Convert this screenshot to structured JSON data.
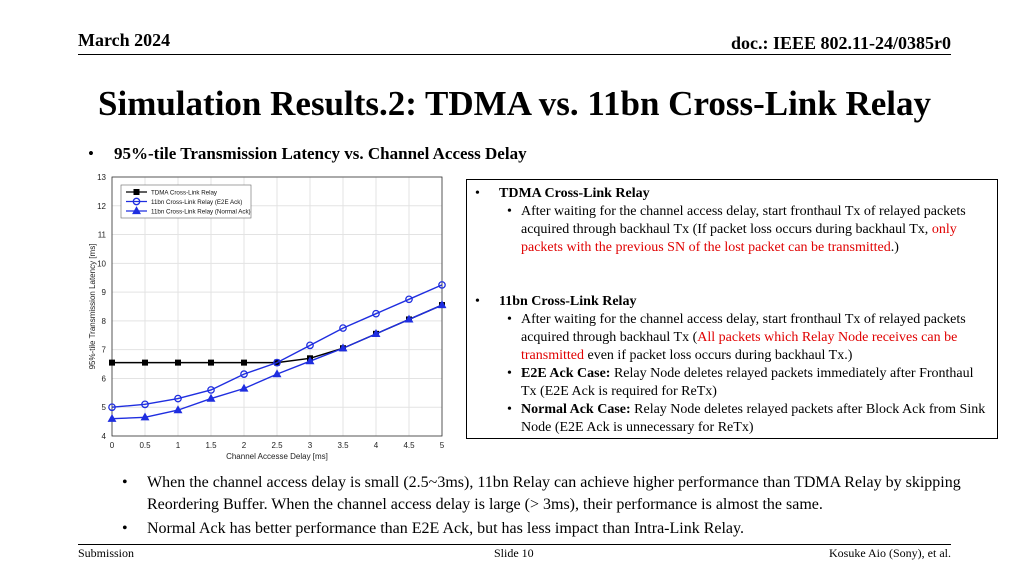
{
  "header": {
    "date": "March 2024",
    "doc": "doc.: IEEE 802.11-24/0385r0"
  },
  "title": "Simulation Results.2:  TDMA vs. 11bn Cross-Link Relay",
  "bullet_top": "95%-tile Transmission Latency vs. Channel Access Delay",
  "box": {
    "tdma_head": "TDMA Cross-Link Relay",
    "tdma_text_a": "After waiting for the channel access delay, start fronthaul Tx of relayed packets acquired through backhaul Tx (If packet loss occurs during backhaul Tx, ",
    "tdma_text_red": "only packets with the previous SN of the lost packet can be transmitted",
    "tdma_text_b": ".)",
    "bn_head": "11bn Cross-Link Relay",
    "bn_text_a": "After waiting for the channel access delay, start fronthaul Tx of relayed packets acquired through backhaul Tx (",
    "bn_text_red": "All packets which Relay Node receives can be transmitted",
    "bn_text_b": " even if packet loss occurs during backhaul Tx.)",
    "e2e_label": "E2E Ack Case:",
    "e2e_text": " Relay Node deletes relayed packets immediately after Fronthaul Tx (E2E Ack is required for ReTx)",
    "normal_label": "Normal Ack Case:",
    "normal_text": " Relay Node deletes relayed packets after Block Ack from Sink Node (E2E Ack is unnecessary for ReTx)"
  },
  "bottom_bullets": [
    "When the channel access delay is small (2.5~3ms), 11bn Relay can achieve higher performance than TDMA Relay by skipping Reordering Buffer. When the channel access delay is large (> 3ms), their performance is almost the same.",
    "Normal Ack has better performance than E2E Ack, but has less impact than Intra-Link Relay."
  ],
  "footer": {
    "left": "Submission",
    "center": "Slide 10",
    "right": "Kosuke Aio (Sony), et al."
  },
  "chart_data": {
    "type": "line",
    "xlabel": "Channel Accesse Delay [ms]",
    "ylabel": "95%-tile Transmission Latency [ms]",
    "x": [
      0,
      0.5,
      1,
      1.5,
      2,
      2.5,
      3,
      3.5,
      4,
      4.5,
      5
    ],
    "x_ticks": [
      "0",
      "0.5",
      "1",
      "1.5",
      "2",
      "2.5",
      "3",
      "3.5",
      "4",
      "4.5",
      "5"
    ],
    "y_ticks": [
      "4",
      "5",
      "6",
      "7",
      "8",
      "9",
      "10",
      "11",
      "12",
      "13"
    ],
    "xlim": [
      0,
      5
    ],
    "ylim": [
      4,
      13
    ],
    "grid": true,
    "legend_position": "top-left",
    "series": [
      {
        "name": "TDMA Cross-Link Relay",
        "marker": "square",
        "color": "#000000",
        "values": [
          6.55,
          6.55,
          6.55,
          6.55,
          6.55,
          6.55,
          6.7,
          7.05,
          7.55,
          8.05,
          8.55
        ]
      },
      {
        "name": "11bn Cross-Link Relay (E2E Ack)",
        "marker": "circle",
        "color": "#1f2ee0",
        "values": [
          5.0,
          5.1,
          5.3,
          5.6,
          6.15,
          6.55,
          7.15,
          7.75,
          8.25,
          8.75,
          9.25
        ]
      },
      {
        "name": "11bn Cross-Link Relay (Normal Ack)",
        "marker": "triangle",
        "color": "#1f2ee0",
        "values": [
          4.6,
          4.65,
          4.9,
          5.3,
          5.65,
          6.15,
          6.6,
          7.05,
          7.55,
          8.05,
          8.55
        ]
      }
    ]
  }
}
